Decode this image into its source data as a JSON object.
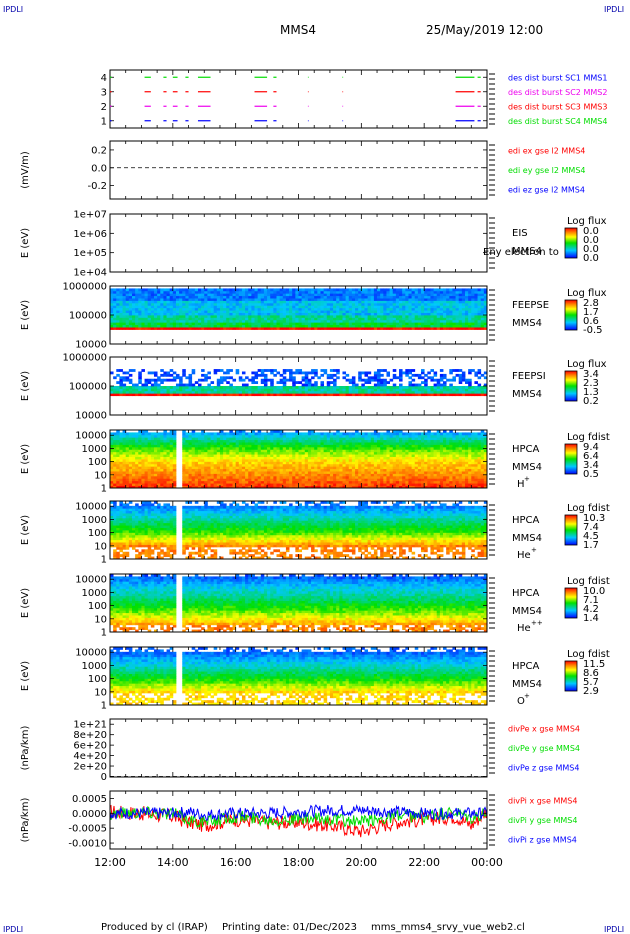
{
  "corner_tag": "IPDLI",
  "header": {
    "spacecraft": "MMS4",
    "datetime": "25/May/2019 12:00"
  },
  "footer": {
    "produced_by": "Produced by cl (IRAP)",
    "printing_date": "Printing date: 01/Dec/2023",
    "filename": "mms_mms4_srvy_vue_web2.cl"
  },
  "time_axis": {
    "ticks": [
      "12:00",
      "14:00",
      "16:00",
      "18:00",
      "20:00",
      "22:00",
      "00:00"
    ],
    "range_hours": [
      12,
      24
    ]
  },
  "colors": {
    "red": "#ff0000",
    "green": "#00dd00",
    "blue": "#0000ff",
    "magenta": "#ee00ee"
  },
  "chart_data": [
    {
      "type": "line",
      "panel": "burst",
      "ylim": [
        0.5,
        4.5
      ],
      "yticks": [
        "1",
        "2",
        "3",
        "4"
      ],
      "legend": [
        {
          "label": "des dist burst SC1 MMS1",
          "color": "#0000ff"
        },
        {
          "label": "des dist burst SC2 MMS2",
          "color": "#ee00ee"
        },
        {
          "label": "des dist burst SC3 MMS3",
          "color": "#ff0000"
        },
        {
          "label": "des dist burst SC4 MMS4",
          "color": "#00dd00"
        }
      ],
      "series": [
        {
          "level": 4,
          "color": "#00dd00",
          "segments": [
            [
              12.0,
              12.05
            ],
            [
              13.1,
              13.3
            ],
            [
              13.7,
              13.8
            ],
            [
              14.0,
              14.15
            ],
            [
              14.4,
              14.5
            ],
            [
              14.8,
              15.2
            ],
            [
              16.6,
              17.0
            ],
            [
              17.2,
              17.3
            ],
            [
              18.3,
              18.32
            ],
            [
              19.4,
              19.42
            ],
            [
              23.0,
              23.6
            ],
            [
              23.7,
              23.8
            ]
          ]
        },
        {
          "level": 3,
          "color": "#ff0000",
          "segments": [
            [
              12.0,
              12.05
            ],
            [
              13.1,
              13.3
            ],
            [
              13.7,
              13.8
            ],
            [
              14.0,
              14.15
            ],
            [
              14.4,
              14.5
            ],
            [
              14.8,
              15.2
            ],
            [
              16.6,
              17.0
            ],
            [
              17.2,
              17.3
            ],
            [
              18.3,
              18.32
            ],
            [
              19.4,
              19.42
            ],
            [
              23.0,
              23.6
            ],
            [
              23.7,
              23.8
            ]
          ]
        },
        {
          "level": 2,
          "color": "#ee00ee",
          "segments": [
            [
              12.0,
              12.05
            ],
            [
              13.1,
              13.3
            ],
            [
              13.7,
              13.8
            ],
            [
              14.0,
              14.15
            ],
            [
              14.4,
              14.5
            ],
            [
              14.8,
              15.2
            ],
            [
              16.6,
              17.0
            ],
            [
              17.2,
              17.3
            ],
            [
              18.3,
              18.32
            ],
            [
              19.4,
              19.42
            ],
            [
              23.0,
              23.6
            ],
            [
              23.7,
              23.8
            ]
          ]
        },
        {
          "level": 1,
          "color": "#0000ff",
          "segments": [
            [
              12.0,
              12.05
            ],
            [
              13.1,
              13.3
            ],
            [
              13.7,
              13.8
            ],
            [
              14.0,
              14.15
            ],
            [
              14.4,
              14.5
            ],
            [
              14.8,
              15.2
            ],
            [
              16.6,
              17.0
            ],
            [
              17.2,
              17.3
            ],
            [
              18.3,
              18.32
            ],
            [
              19.4,
              19.42
            ],
            [
              23.0,
              23.6
            ],
            [
              23.7,
              23.8
            ]
          ]
        }
      ]
    },
    {
      "type": "line",
      "panel": "edi",
      "ylabel": "(mV/m)",
      "ylim": [
        -0.35,
        0.3
      ],
      "yticks": [
        "0.2",
        "0.0",
        "-0.2"
      ],
      "ytick_values": [
        0.2,
        0.0,
        -0.2
      ],
      "zero_line": 0.0,
      "legend": [
        {
          "label": "edi ex gse l2 MMS4",
          "color": "#ff0000"
        },
        {
          "label": "edi ey gse l2 MMS4",
          "color": "#00dd00"
        },
        {
          "label": "edi ez gse l2 MMS4",
          "color": "#0000ff"
        }
      ]
    },
    {
      "type": "heatmap",
      "panel": "eis",
      "ylabel": "E (eV)",
      "log_y": true,
      "ylim": [
        10000,
        10000000
      ],
      "yticks": [
        "1e+07",
        "1e+06",
        "1e+05",
        "1e+04"
      ],
      "ytick_values": [
        10000000,
        1000000,
        100000,
        10000
      ],
      "instrument_labels": [
        "EIS",
        "MMS4"
      ],
      "overlay_text": "Eny electron to",
      "colorbar": {
        "title": "Log flux",
        "ticks": [
          "0.0",
          "0.0",
          "0.0",
          "0.0"
        ]
      },
      "empty": true
    },
    {
      "type": "heatmap",
      "panel": "feepse",
      "ylabel": "E (eV)",
      "log_y": true,
      "ylim": [
        10000,
        1000000
      ],
      "yticks": [
        "1000000",
        "100000",
        "10000"
      ],
      "ytick_values": [
        1000000,
        100000,
        10000
      ],
      "instrument_labels": [
        "FEEPSE",
        "MMS4"
      ],
      "colorbar": {
        "title": "Log flux",
        "ticks": [
          "2.8",
          "1.7",
          "0.6",
          "-0.5"
        ],
        "range": [
          -0.5,
          2.8
        ]
      },
      "bands": [
        {
          "from": 30000,
          "to": 40000,
          "level": 1.0
        },
        {
          "from": 40000,
          "to": 60000,
          "level": 0.45
        },
        {
          "from": 60000,
          "to": 100000,
          "level": 0.35
        },
        {
          "from": 100000,
          "to": 300000,
          "level": 0.25
        },
        {
          "from": 300000,
          "to": 800000,
          "level": 0.15
        }
      ]
    },
    {
      "type": "heatmap",
      "panel": "feepsi",
      "ylabel": "E (eV)",
      "log_y": true,
      "ylim": [
        10000,
        1000000
      ],
      "yticks": [
        "1000000",
        "100000",
        "10000"
      ],
      "ytick_values": [
        1000000,
        100000,
        10000
      ],
      "instrument_labels": [
        "FEEPSI",
        "MMS4"
      ],
      "colorbar": {
        "title": "Log flux",
        "ticks": [
          "3.4",
          "2.3",
          "1.3",
          "0.2"
        ],
        "range": [
          0.2,
          3.4
        ]
      },
      "bands": [
        {
          "from": 50000,
          "to": 60000,
          "level": 1.0
        },
        {
          "from": 60000,
          "to": 100000,
          "level": 0.35
        },
        {
          "from": 100000,
          "to": 400000,
          "level": 0.1
        }
      ]
    },
    {
      "type": "heatmap",
      "panel": "hpca_h",
      "ylabel": "E (eV)",
      "log_y": true,
      "ylim": [
        1,
        25000
      ],
      "yticks": [
        "10000",
        "1000",
        "100",
        "10",
        "1"
      ],
      "ytick_values": [
        10000,
        1000,
        100,
        10,
        1
      ],
      "instrument_labels": [
        "HPCA",
        "MMS4"
      ],
      "species": "H",
      "charge": "+",
      "colorbar": {
        "title": "Log fdist",
        "ticks": [
          "9.4",
          "6.4",
          "3.4",
          "0.5"
        ],
        "range": [
          0.5,
          9.4
        ]
      },
      "data_gap": [
        14.15,
        14.25
      ],
      "profile": [
        {
          "e": 1,
          "level": 0.95
        },
        {
          "e": 10,
          "level": 0.85
        },
        {
          "e": 100,
          "level": 0.75
        },
        {
          "e": 1000,
          "level": 0.55
        },
        {
          "e": 5000,
          "level": 0.35
        },
        {
          "e": 20000,
          "level": 0.15
        }
      ]
    },
    {
      "type": "heatmap",
      "panel": "hpca_he1",
      "ylabel": "E (eV)",
      "log_y": true,
      "ylim": [
        1,
        25000
      ],
      "yticks": [
        "10000",
        "1000",
        "100",
        "10",
        "1"
      ],
      "ytick_values": [
        10000,
        1000,
        100,
        10,
        1
      ],
      "instrument_labels": [
        "HPCA",
        "MMS4"
      ],
      "species": "He",
      "charge": "+",
      "colorbar": {
        "title": "Log fdist",
        "ticks": [
          "10.3",
          "7.4",
          "4.5",
          "1.7"
        ],
        "range": [
          1.7,
          10.3
        ]
      },
      "data_gap": [
        14.15,
        14.25
      ],
      "profile": [
        {
          "e": 10,
          "level": 0.85
        },
        {
          "e": 100,
          "level": 0.55
        },
        {
          "e": 1000,
          "level": 0.35
        },
        {
          "e": 10000,
          "level": 0.15
        }
      ]
    },
    {
      "type": "heatmap",
      "panel": "hpca_he2",
      "ylabel": "E (eV)",
      "log_y": true,
      "ylim": [
        1,
        25000
      ],
      "yticks": [
        "10000",
        "1000",
        "100",
        "10",
        "1"
      ],
      "ytick_values": [
        10000,
        1000,
        100,
        10,
        1
      ],
      "instrument_labels": [
        "HPCA",
        "MMS4"
      ],
      "species": "He",
      "charge": "++",
      "colorbar": {
        "title": "Log fdist",
        "ticks": [
          "10.0",
          "7.1",
          "4.2",
          "1.4"
        ],
        "range": [
          1.4,
          10.0
        ]
      },
      "data_gap": [
        14.15,
        14.25
      ],
      "profile": [
        {
          "e": 3,
          "level": 0.85
        },
        {
          "e": 30,
          "level": 0.6
        },
        {
          "e": 300,
          "level": 0.4
        },
        {
          "e": 3000,
          "level": 0.25
        },
        {
          "e": 20000,
          "level": 0.1
        }
      ]
    },
    {
      "type": "heatmap",
      "panel": "hpca_o",
      "ylabel": "E (eV)",
      "log_y": true,
      "ylim": [
        1,
        25000
      ],
      "yticks": [
        "10000",
        "1000",
        "100",
        "10",
        "1"
      ],
      "ytick_values": [
        10000,
        1000,
        100,
        10,
        1
      ],
      "instrument_labels": [
        "HPCA",
        "MMS4"
      ],
      "species": "O",
      "charge": "+",
      "colorbar": {
        "title": "Log fdist",
        "ticks": [
          "11.5",
          "8.6",
          "5.7",
          "2.9"
        ],
        "range": [
          2.9,
          11.5
        ]
      },
      "data_gap": [
        14.15,
        14.25
      ],
      "profile": [
        {
          "e": 10,
          "level": 0.75
        },
        {
          "e": 100,
          "level": 0.5
        },
        {
          "e": 1000,
          "level": 0.3
        },
        {
          "e": 10000,
          "level": 0.12
        }
      ]
    },
    {
      "type": "line",
      "panel": "divpe",
      "ylabel": "(nPa/km)",
      "ylim": [
        -1e+19,
        1.1e+21
      ],
      "yticks": [
        "1e+21",
        "8e+20",
        "6e+20",
        "4e+20",
        "2e+20",
        "0"
      ],
      "ytick_values": [
        1e+21,
        8e+20,
        6e+20,
        4e+20,
        2e+20,
        0
      ],
      "zero_line": 0,
      "legend": [
        {
          "label": "divPe x gse MMS4",
          "color": "#ff0000"
        },
        {
          "label": "divPe y gse MMS4",
          "color": "#00dd00"
        },
        {
          "label": "divPe z gse MMS4",
          "color": "#0000ff"
        }
      ]
    },
    {
      "type": "line",
      "panel": "divpi",
      "ylabel": "(nPa/km)",
      "ylim": [
        -0.0012,
        0.00075
      ],
      "yticks": [
        "0.0005",
        "0.0000",
        "-0.0005",
        "-0.0010"
      ],
      "ytick_values": [
        0.0005,
        0.0,
        -0.0005,
        -0.001
      ],
      "legend": [
        {
          "label": "divPi x gse MMS4",
          "color": "#ff0000"
        },
        {
          "label": "divPi y gse MMS4",
          "color": "#00dd00"
        },
        {
          "label": "divPi z gse MMS4",
          "color": "#0000ff"
        }
      ],
      "series": [
        {
          "name": "divPi x gse MMS4",
          "color": "#ff0000",
          "x": [
            12,
            13,
            14,
            14.5,
            15,
            16,
            17,
            18,
            19,
            20,
            21,
            22,
            23,
            23.5,
            24
          ],
          "y": [
            5e-05,
            0.0,
            -0.0001,
            -0.0003,
            -0.0004,
            -0.0002,
            -0.0003,
            -0.0003,
            -0.0004,
            -0.0006,
            -0.0003,
            -0.0002,
            -0.0001,
            -0.0004,
            0.0001
          ],
          "spread": 0.00025
        },
        {
          "name": "divPi y gse MMS4",
          "color": "#00dd00",
          "x": [
            12,
            13,
            14,
            14.5,
            15,
            16,
            17,
            18,
            19,
            20,
            21,
            22,
            23,
            23.5,
            24
          ],
          "y": [
            0.0,
            5e-05,
            0.0,
            -0.0002,
            -0.0003,
            -0.0001,
            -0.0002,
            -0.0002,
            -0.0002,
            -0.0003,
            -0.0001,
            -0.0001,
            0.0,
            -0.0002,
            0.0
          ],
          "spread": 0.00022
        },
        {
          "name": "divPi z gse MMS4",
          "color": "#0000ff",
          "x": [
            12,
            13,
            14,
            14.5,
            15,
            16,
            17,
            18,
            19,
            20,
            21,
            22,
            23,
            23.5,
            24
          ],
          "y": [
            0.0,
            0.0,
            0.0,
            5e-05,
            -5e-05,
            0.0,
            0.0,
            5e-05,
            0.0001,
            0.0001,
            5e-05,
            0.0,
            0.0,
            0.0,
            0.0
          ],
          "spread": 0.0002
        }
      ]
    }
  ]
}
